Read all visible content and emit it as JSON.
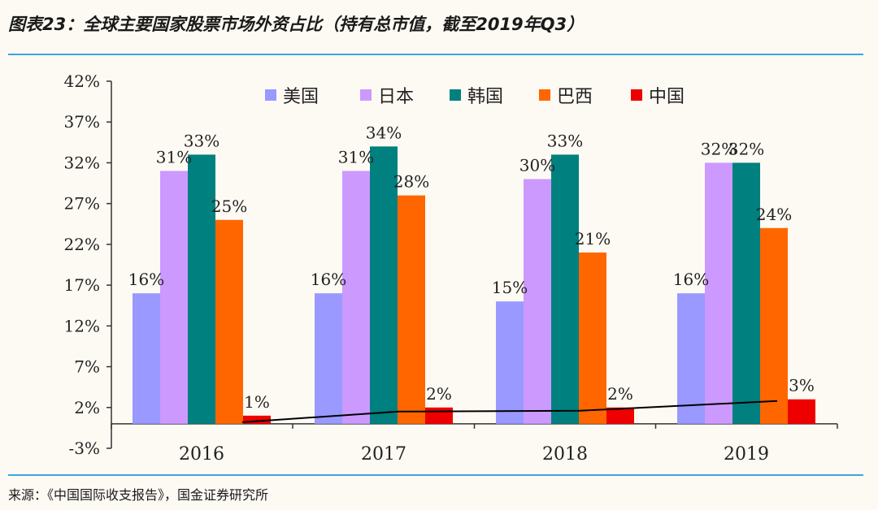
{
  "figure": {
    "title": "图表23：全球主要国家股票市场外资占比（持有总市值，截至2019年Q3）",
    "source": "来源：《中国国际收支报告》，国金证券研究所"
  },
  "colors": {
    "rule": "#3aa6dd",
    "axis": "#333333",
    "trend_line": "#000000"
  },
  "chart_data": {
    "type": "bar",
    "categories": [
      "2016",
      "2017",
      "2018",
      "2019"
    ],
    "series": [
      {
        "name": "美国",
        "color": "#9999ff",
        "values": [
          16,
          16,
          15,
          16
        ],
        "labels": [
          "16%",
          "16%",
          "15%",
          "16%"
        ]
      },
      {
        "name": "日本",
        "color": "#cc99ff",
        "values": [
          31,
          31,
          30,
          32
        ],
        "labels": [
          "31%",
          "31%",
          "30%",
          "32%"
        ]
      },
      {
        "name": "韩国",
        "color": "#00807f",
        "values": [
          33,
          34,
          33,
          32
        ],
        "labels": [
          "33%",
          "34%",
          "33%",
          "32%"
        ]
      },
      {
        "name": "巴西",
        "color": "#ff6600",
        "values": [
          25,
          28,
          21,
          24
        ],
        "labels": [
          "25%",
          "28%",
          "21%",
          "24%"
        ]
      },
      {
        "name": "中国",
        "color": "#ee0000",
        "values": [
          1,
          2,
          2,
          3
        ],
        "labels": [
          "1%",
          "2%",
          "2%",
          "3%"
        ]
      }
    ],
    "trend_line": {
      "series": "中国",
      "values": [
        0.2,
        1.5,
        1.6,
        2.8
      ]
    },
    "yticks": [
      "42%",
      "37%",
      "32%",
      "27%",
      "22%",
      "17%",
      "12%",
      "7%",
      "2%",
      "-3%"
    ],
    "ytick_values": [
      42,
      37,
      32,
      27,
      22,
      17,
      12,
      7,
      2,
      -3
    ],
    "ylim": [
      -3,
      42
    ],
    "legend_position": "top",
    "grid": false,
    "xlabel": "",
    "ylabel": ""
  }
}
